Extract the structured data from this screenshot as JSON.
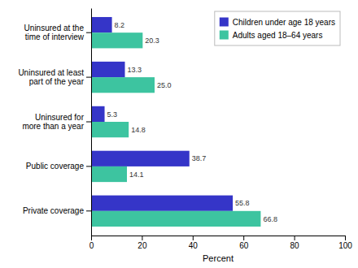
{
  "chart_data": {
    "type": "bar",
    "orientation": "horizontal",
    "categories": [
      "Uninsured at the\ntime of interview",
      "Uninsured at least\npart of the year",
      "Uninsured for\nmore than a year",
      "Public coverage",
      "Private coverage"
    ],
    "series": [
      {
        "name": "Children under age 18 years",
        "color": "#3535c8",
        "values": [
          8.2,
          13.3,
          5.3,
          38.7,
          55.8
        ],
        "value_labels": [
          "8.2",
          "13.3",
          "5.3",
          "38.7",
          "55.8"
        ]
      },
      {
        "name": "Adults aged 18–64 years",
        "color": "#3dc4a0",
        "values": [
          20.3,
          25.0,
          14.8,
          14.1,
          66.8
        ],
        "value_labels": [
          "20.3",
          "25.0",
          "14.8",
          "14.1",
          "66.8"
        ]
      }
    ],
    "xlabel": "Percent",
    "xlim": [
      0,
      100
    ],
    "xticks": [
      0,
      20,
      40,
      60,
      80,
      100
    ],
    "grid": false,
    "legend": "upper right",
    "data_labels": true
  }
}
